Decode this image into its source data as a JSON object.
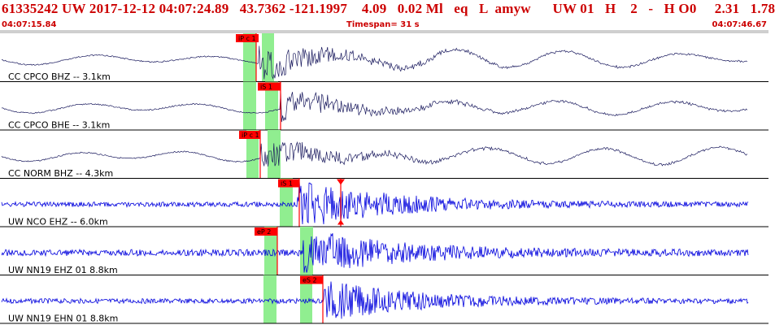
{
  "header": {
    "title": "61335242 UW 2017-12-12 04:07:24.89   43.7362 -121.1997    4.09   0.02 Ml   eq   L  amyw      UW 01   H    2   -   H O0     2.31   1.78",
    "start_time": "04:07:15.84",
    "timespan": "Timespan=  31 s",
    "end_time": "04:07:46.67"
  },
  "colors": {
    "header_text": "#cc0000",
    "trace_short_period": "#1a1a5e",
    "trace_broadband": "#0000dd",
    "pick_flag": "#ff0000",
    "window_band": "#90ee90"
  },
  "traces": [
    {
      "label": "CC CPCO BHZ -- 3.1km",
      "color": "dark",
      "picks": [
        {
          "text": "iP c 1"
        }
      ]
    },
    {
      "label": "CC CPCO BHE -- 3.1km",
      "color": "dark",
      "picks": [
        {
          "text": "iS 1"
        }
      ]
    },
    {
      "label": "CC NORM BHZ -- 4.3km",
      "color": "dark",
      "picks": [
        {
          "text": "iP c 1"
        }
      ]
    },
    {
      "label": "UW NCO EHZ -- 6.0km",
      "color": "blue",
      "picks": [
        {
          "text": "iS 1"
        },
        {
          "text": ""
        }
      ]
    },
    {
      "label": "UW NN19 EHZ 01 8.8km",
      "color": "blue",
      "picks": [
        {
          "text": "eP 2"
        }
      ]
    },
    {
      "label": "UW NN19 EHN 01 8.8km",
      "color": "blue",
      "picks": [
        {
          "text": "eS 2"
        }
      ]
    }
  ]
}
